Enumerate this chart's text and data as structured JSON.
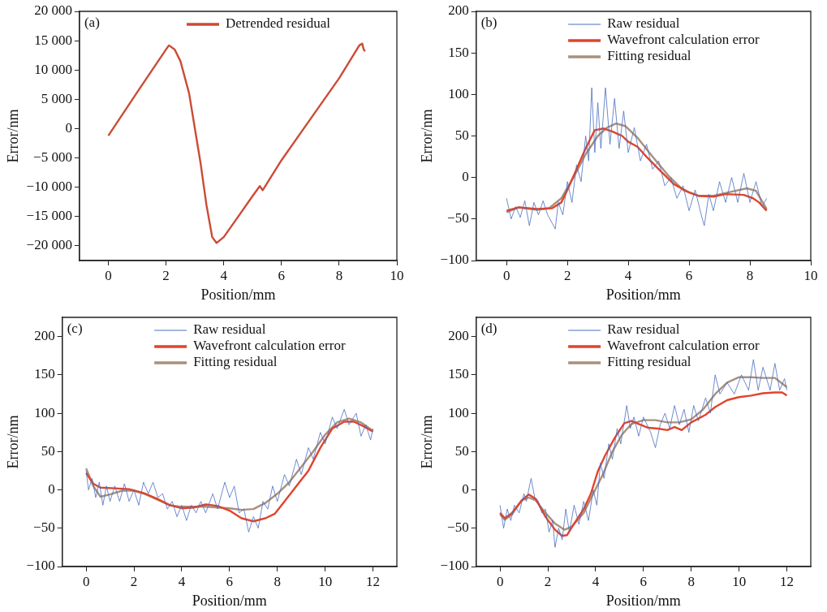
{
  "chart_data": [
    {
      "type": "line",
      "xlabel": "Position/mm",
      "ylabel": "Error/nm",
      "annotations": [
        "(a)"
      ],
      "legend": "top",
      "xlim": [
        -1,
        10
      ],
      "xticks": [
        0,
        2,
        4,
        6,
        8,
        10
      ],
      "ylim": [
        -22500,
        20000
      ],
      "yticks": [
        {
          "value": 20000,
          "label": "20 000"
        },
        {
          "value": 15000,
          "label": "15 000"
        },
        {
          "value": 10000,
          "label": "10 000"
        },
        {
          "value": 5000,
          "label": "5 000"
        },
        0,
        {
          "value": -5000,
          "label": "−5 000"
        },
        {
          "value": -10000,
          "label": "−10 000"
        },
        {
          "value": -15000,
          "label": "−15 000"
        },
        {
          "value": -20000,
          "label": "−20 000"
        }
      ],
      "series": [
        {
          "name": "Detrended residual",
          "color": "#cc4b35",
          "x": [
            0,
            1,
            2,
            2.1,
            2.3,
            2.5,
            2.8,
            3.0,
            3.2,
            3.4,
            3.6,
            3.75,
            4,
            4.5,
            5,
            5.25,
            5.35,
            6,
            7,
            8,
            8.7,
            8.8,
            8.85,
            8.9
          ],
          "values": [
            -1200,
            6200,
            13500,
            14200,
            13500,
            11500,
            6000,
            0,
            -6000,
            -13000,
            -18500,
            -19500,
            -18500,
            -15000,
            -11500,
            -9800,
            -10500,
            -5400,
            1600,
            8600,
            14200,
            14500,
            13500,
            13200
          ]
        }
      ]
    },
    {
      "type": "line",
      "xlabel": "Position/mm",
      "ylabel": "Error/nm",
      "annotations": [
        "(b)"
      ],
      "legend": "top",
      "xlim": [
        -1,
        10
      ],
      "xticks": [
        0,
        2,
        4,
        6,
        8,
        10
      ],
      "ylim": [
        -100,
        200
      ],
      "yticks": [
        200,
        150,
        100,
        50,
        0,
        {
          "value": -50,
          "label": "−50"
        },
        {
          "value": -100,
          "label": "−100"
        }
      ],
      "series": [
        {
          "name": "Raw residual",
          "color": "#4a6fbf",
          "x": [
            0,
            0.15,
            0.3,
            0.45,
            0.6,
            0.75,
            0.9,
            1.05,
            1.2,
            1.35,
            1.5,
            1.6,
            1.7,
            1.85,
            2.0,
            2.15,
            2.3,
            2.45,
            2.6,
            2.7,
            2.8,
            2.9,
            3.0,
            3.1,
            3.25,
            3.4,
            3.55,
            3.7,
            3.85,
            4.0,
            4.2,
            4.4,
            4.6,
            4.8,
            5.0,
            5.2,
            5.4,
            5.6,
            5.8,
            6.0,
            6.2,
            6.4,
            6.5,
            6.65,
            6.8,
            7.0,
            7.2,
            7.4,
            7.6,
            7.8,
            8.0,
            8.2,
            8.4,
            8.55
          ],
          "values": [
            -25,
            -50,
            -35,
            -48,
            -28,
            -58,
            -30,
            -45,
            -28,
            -45,
            -55,
            -62,
            -30,
            -45,
            -5,
            -30,
            15,
            -5,
            50,
            20,
            108,
            30,
            90,
            35,
            108,
            40,
            95,
            35,
            80,
            30,
            60,
            20,
            40,
            10,
            20,
            -10,
            0,
            -25,
            -10,
            -40,
            -15,
            -45,
            -58,
            -20,
            -40,
            -5,
            -30,
            0,
            -30,
            5,
            -30,
            -5,
            -35,
            -25
          ]
        },
        {
          "name": "Wavefront calculation error",
          "color": "#e0442c",
          "x": [
            0,
            0.4,
            1,
            1.5,
            1.8,
            2,
            2.3,
            2.6,
            2.9,
            3.2,
            3.5,
            3.8,
            4,
            4.3,
            4.6,
            5,
            5.5,
            6,
            6.3,
            6.8,
            7.2,
            7.8,
            8.1,
            8.3,
            8.55
          ],
          "values": [
            -40,
            -36,
            -38,
            -37,
            -30,
            -15,
            10,
            35,
            57,
            59,
            55,
            50,
            43,
            37,
            25,
            10,
            -8,
            -18,
            -22,
            -23,
            -20,
            -21,
            -25,
            -30,
            -40
          ]
        },
        {
          "name": "Fitting residual",
          "color": "#a8907e",
          "x": [
            0,
            0.4,
            1,
            1.4,
            1.8,
            2.2,
            2.6,
            3,
            3.3,
            3.6,
            3.9,
            4.3,
            4.8,
            5.3,
            5.8,
            6.3,
            6.8,
            7.4,
            7.9,
            8.2,
            8.55
          ],
          "values": [
            -42,
            -36,
            -39,
            -37,
            -25,
            0,
            28,
            50,
            60,
            65,
            62,
            48,
            25,
            3,
            -15,
            -22,
            -22,
            -17,
            -13,
            -16,
            -38
          ]
        }
      ]
    },
    {
      "type": "line",
      "xlabel": "Position/mm",
      "ylabel": "Error/nm",
      "annotations": [
        "(c)"
      ],
      "legend": "top",
      "xlim": [
        -1,
        13
      ],
      "xticks": [
        0,
        2,
        4,
        6,
        8,
        10,
        12
      ],
      "ylim": [
        -100,
        225
      ],
      "yticks": [
        200,
        150,
        100,
        50,
        0,
        {
          "value": -50,
          "label": "−50"
        },
        {
          "value": -100,
          "label": "−100"
        }
      ],
      "series": [
        {
          "name": "Raw residual",
          "color": "#4a6fbf",
          "x": [
            0,
            0.1,
            0.25,
            0.4,
            0.55,
            0.7,
            0.85,
            1.0,
            1.2,
            1.4,
            1.6,
            1.8,
            2.0,
            2.2,
            2.4,
            2.6,
            2.8,
            3.0,
            3.2,
            3.4,
            3.6,
            3.8,
            4.0,
            4.2,
            4.4,
            4.6,
            4.8,
            5.0,
            5.3,
            5.5,
            5.8,
            6.0,
            6.2,
            6.4,
            6.6,
            6.8,
            7.0,
            7.2,
            7.4,
            7.6,
            7.8,
            8.0,
            8.3,
            8.5,
            8.8,
            9.0,
            9.3,
            9.5,
            9.8,
            10.0,
            10.3,
            10.5,
            10.8,
            11.0,
            11.3,
            11.5,
            11.7,
            11.9,
            12.0
          ],
          "values": [
            25,
            0,
            15,
            -10,
            10,
            -20,
            5,
            -15,
            5,
            -15,
            8,
            -15,
            0,
            -20,
            10,
            -5,
            10,
            -10,
            -5,
            -25,
            -15,
            -35,
            -20,
            -40,
            -20,
            -30,
            -15,
            -30,
            -5,
            -25,
            10,
            -10,
            5,
            -30,
            -25,
            -55,
            -35,
            -50,
            -15,
            -25,
            5,
            -15,
            20,
            5,
            40,
            20,
            55,
            40,
            75,
            60,
            95,
            80,
            105,
            85,
            100,
            70,
            85,
            65,
            80
          ]
        },
        {
          "name": "Wavefront calculation error",
          "color": "#e0442c",
          "x": [
            0,
            0.3,
            0.6,
            1.2,
            1.8,
            2.4,
            3,
            3.5,
            4,
            4.5,
            5,
            5.5,
            6,
            6.5,
            7,
            7.5,
            7.9,
            8.3,
            8.8,
            9.3,
            9.8,
            10.3,
            10.8,
            11.2,
            11.6,
            12
          ],
          "values": [
            22,
            8,
            3,
            2,
            1,
            -4,
            -12,
            -20,
            -24,
            -23,
            -19,
            -21,
            -27,
            -37,
            -41,
            -37,
            -31,
            -15,
            5,
            25,
            55,
            80,
            89,
            89,
            83,
            76
          ]
        },
        {
          "name": "Fitting residual",
          "color": "#a8907e",
          "x": [
            0,
            0.3,
            0.6,
            1,
            1.5,
            2,
            2.5,
            3,
            3.5,
            4,
            4.5,
            5,
            5.5,
            6,
            6.5,
            7,
            7.5,
            8,
            8.5,
            9,
            9.5,
            10,
            10.5,
            11,
            11.5,
            12
          ],
          "values": [
            28,
            5,
            -9,
            -6,
            -1,
            -1,
            -6,
            -13,
            -20,
            -22,
            -22,
            -22,
            -23,
            -24,
            -26,
            -25,
            -17,
            -5,
            10,
            30,
            50,
            72,
            88,
            93,
            88,
            77
          ]
        }
      ]
    },
    {
      "type": "line",
      "xlabel": "Position/mm",
      "ylabel": "Error/nm",
      "annotations": [
        "(d)"
      ],
      "legend": "top",
      "xlim": [
        -1,
        13
      ],
      "xticks": [
        0,
        2,
        4,
        6,
        8,
        10,
        12
      ],
      "ylim": [
        -100,
        225
      ],
      "yticks": [
        200,
        150,
        100,
        50,
        0,
        {
          "value": -50,
          "label": "−50"
        },
        {
          "value": -100,
          "label": "−100"
        }
      ],
      "series": [
        {
          "name": "Raw residual",
          "color": "#4a6fbf",
          "x": [
            0,
            0.15,
            0.3,
            0.45,
            0.6,
            0.8,
            1.0,
            1.1,
            1.3,
            1.45,
            1.6,
            1.75,
            1.9,
            2.05,
            2.2,
            2.3,
            2.45,
            2.6,
            2.75,
            2.9,
            3.1,
            3.3,
            3.5,
            3.7,
            3.9,
            4.05,
            4.2,
            4.35,
            4.55,
            4.7,
            4.9,
            5.05,
            5.3,
            5.45,
            5.6,
            5.8,
            6.0,
            6.3,
            6.5,
            6.7,
            6.9,
            7.1,
            7.3,
            7.5,
            7.7,
            7.9,
            8.1,
            8.3,
            8.6,
            8.8,
            9.0,
            9.2,
            9.5,
            9.8,
            10.1,
            10.4,
            10.6,
            10.8,
            11.0,
            11.3,
            11.5,
            11.7,
            11.9,
            12.0
          ],
          "values": [
            -20,
            -50,
            -25,
            -40,
            -20,
            -30,
            -5,
            -15,
            15,
            -10,
            -15,
            -30,
            -25,
            -55,
            -40,
            -75,
            -50,
            -65,
            -25,
            -55,
            -20,
            -45,
            -15,
            -40,
            0,
            -20,
            35,
            15,
            60,
            40,
            80,
            60,
            110,
            80,
            95,
            70,
            95,
            75,
            55,
            85,
            100,
            80,
            110,
            85,
            105,
            75,
            110,
            90,
            120,
            100,
            150,
            125,
            140,
            125,
            150,
            130,
            170,
            130,
            160,
            130,
            165,
            130,
            145,
            130
          ]
        },
        {
          "name": "Wavefront calculation error",
          "color": "#e0442c",
          "x": [
            0,
            0.2,
            0.5,
            0.9,
            1.2,
            1.5,
            1.9,
            2.3,
            2.6,
            2.8,
            3.1,
            3.5,
            3.8,
            4.1,
            4.4,
            4.8,
            5.2,
            5.5,
            5.8,
            6.2,
            6.6,
            7,
            7.3,
            7.6,
            8,
            8.6,
            9,
            9.5,
            10,
            10.5,
            11,
            11.5,
            11.8,
            12
          ],
          "values": [
            -30,
            -37,
            -30,
            -14,
            -6,
            -12,
            -35,
            -52,
            -60,
            -59,
            -44,
            -25,
            -5,
            25,
            45,
            68,
            87,
            90,
            86,
            81,
            80,
            78,
            82,
            78,
            88,
            98,
            108,
            117,
            121,
            123,
            126,
            127,
            127,
            123
          ]
        },
        {
          "name": "Fitting residual",
          "color": "#a8907e",
          "x": [
            0,
            0.2,
            0.5,
            0.9,
            1.2,
            1.5,
            1.9,
            2.3,
            2.7,
            3,
            3.5,
            3.9,
            4.3,
            4.7,
            5.1,
            5.5,
            6,
            6.5,
            7,
            7.5,
            8,
            8.5,
            9,
            9.5,
            10,
            10.5,
            11,
            11.5,
            12
          ],
          "values": [
            -32,
            -39,
            -32,
            -14,
            -10,
            -14,
            -30,
            -44,
            -52,
            -48,
            -30,
            -5,
            20,
            50,
            72,
            86,
            91,
            91,
            88,
            88,
            92,
            105,
            125,
            140,
            147,
            147,
            146,
            146,
            134
          ]
        }
      ]
    }
  ]
}
